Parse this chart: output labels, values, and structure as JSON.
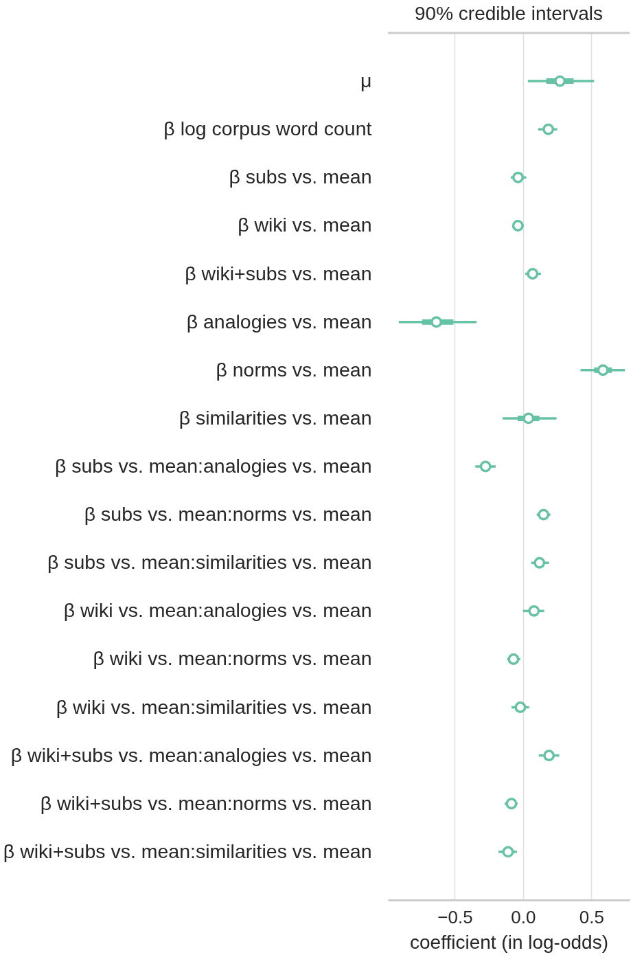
{
  "chart_data": {
    "type": "box",
    "orientation": "horizontal",
    "title": "90% credible intervals",
    "xlabel": "coefficient (in log-odds)",
    "categories": [
      "μ",
      "β log corpus word count",
      "β subs vs. mean",
      "β wiki vs. mean",
      "β wiki+subs vs. mean",
      "β analogies vs. mean",
      "β norms vs. mean",
      "β similarities vs. mean",
      "β subs vs. mean:analogies vs. mean",
      "β subs vs. mean:norms vs. mean",
      "β subs vs. mean:similarities vs. mean",
      "β wiki vs. mean:analogies vs. mean",
      "β wiki vs. mean:norms vs. mean",
      "β wiki vs. mean:similarities vs. mean",
      "β wiki+subs vs. mean:analogies vs. mean",
      "β wiki+subs vs. mean:norms vs. mean",
      "β wiki+subs vs. mean:similarities vs. mean"
    ],
    "series": [
      {
        "color": "#66c2a5",
        "boxes": [
          {
            "low": 0.035,
            "q1": 0.17,
            "median": 0.27,
            "q3": 0.37,
            "high": 0.52
          },
          {
            "low": 0.11,
            "q1": 0.165,
            "median": 0.185,
            "q3": 0.205,
            "high": 0.25
          },
          {
            "low": -0.09,
            "q1": -0.055,
            "median": -0.037,
            "q3": -0.02,
            "high": 0.023
          },
          {
            "low": -0.08,
            "q1": -0.055,
            "median": -0.038,
            "q3": -0.02,
            "high": 0.005
          },
          {
            "low": 0.016,
            "q1": 0.05,
            "median": 0.07,
            "q3": 0.09,
            "high": 0.13
          },
          {
            "low": -0.91,
            "q1": -0.74,
            "median": -0.635,
            "q3": -0.51,
            "high": -0.34
          },
          {
            "low": 0.42,
            "q1": 0.52,
            "median": 0.585,
            "q3": 0.65,
            "high": 0.745
          },
          {
            "low": -0.15,
            "q1": -0.04,
            "median": 0.04,
            "q3": 0.12,
            "high": 0.245
          },
          {
            "low": -0.35,
            "q1": -0.295,
            "median": -0.275,
            "q3": -0.255,
            "high": -0.2
          },
          {
            "low": 0.1,
            "q1": 0.13,
            "median": 0.15,
            "q3": 0.17,
            "high": 0.2
          },
          {
            "low": 0.06,
            "q1": 0.1,
            "median": 0.12,
            "q3": 0.14,
            "high": 0.19
          },
          {
            "low": 0.0,
            "q1": 0.06,
            "median": 0.08,
            "q3": 0.1,
            "high": 0.155
          },
          {
            "low": -0.115,
            "q1": -0.085,
            "median": -0.07,
            "q3": -0.055,
            "high": -0.02
          },
          {
            "low": -0.085,
            "q1": -0.04,
            "median": -0.02,
            "q3": 0.0,
            "high": 0.045
          },
          {
            "low": 0.115,
            "q1": 0.17,
            "median": 0.19,
            "q3": 0.21,
            "high": 0.265
          },
          {
            "low": -0.135,
            "q1": -0.1,
            "median": -0.085,
            "q3": -0.07,
            "high": -0.04
          },
          {
            "low": -0.18,
            "q1": -0.13,
            "median": -0.11,
            "q3": -0.09,
            "high": -0.045
          }
        ]
      }
    ],
    "xlim": [
      -0.99,
      0.78
    ],
    "xticks": [
      {
        "value": -0.5,
        "label": "−0.5"
      },
      {
        "value": 0,
        "label": "0.0"
      },
      {
        "value": 0.5,
        "label": "0.5"
      }
    ],
    "grid": "x"
  }
}
